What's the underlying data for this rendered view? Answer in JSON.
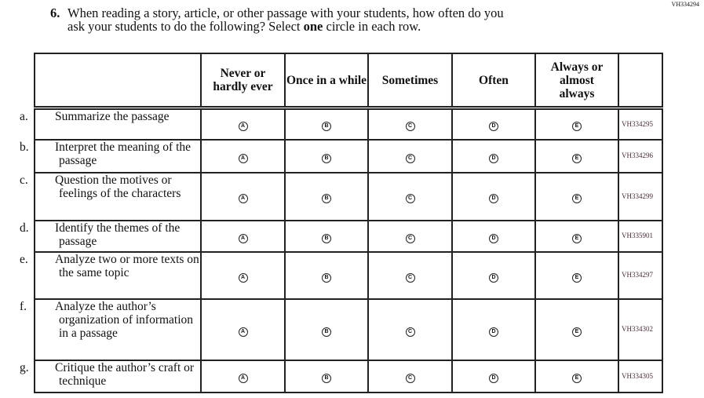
{
  "page_code": "VH334294",
  "question": {
    "number": "6.",
    "line1": "When reading a story, article, or other passage with your students, how often do you",
    "line2_pre": "ask your students to do the following? Select ",
    "line2_bold": "one",
    "line2_post": " circle in each row."
  },
  "columns": [
    "Never or hardly ever",
    "Once in a while",
    "Sometimes",
    "Often",
    "Always or almost always"
  ],
  "options": [
    "A",
    "B",
    "C",
    "D",
    "E"
  ],
  "rows": [
    {
      "letter": "a.",
      "text": "Summarize the passage",
      "code": "VH334295"
    },
    {
      "letter": "b.",
      "text": "Interpret the meaning of the passage",
      "code": "VH334296"
    },
    {
      "letter": "c.",
      "text": "Question the motives or feelings of the characters",
      "code": "VH334299"
    },
    {
      "letter": "d.",
      "text": "Identify the themes of the passage",
      "code": "VH335901"
    },
    {
      "letter": "e.",
      "text": "Analyze two or more texts on the same topic",
      "code": "VH334297"
    },
    {
      "letter": "f.",
      "text": "Analyze the author’s organization of information in a passage",
      "code": "VH334302"
    },
    {
      "letter": "g.",
      "text": "Critique the author’s craft or technique",
      "code": "VH334305"
    }
  ]
}
